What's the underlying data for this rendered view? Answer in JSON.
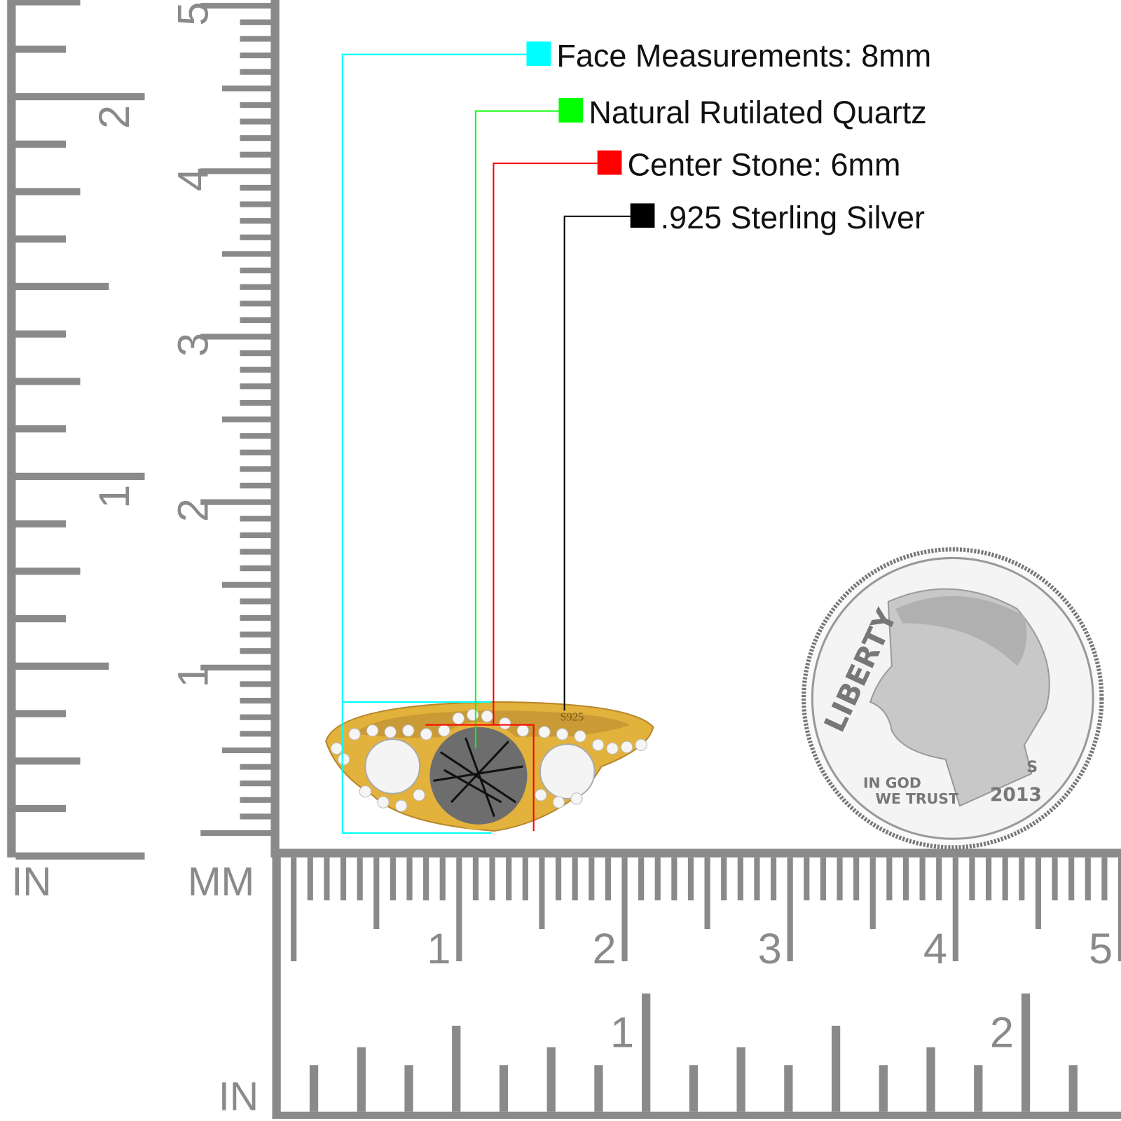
{
  "legend": [
    {
      "label": "Face Measurements: 8mm",
      "color": "#00ffff"
    },
    {
      "label": "Natural Rutilated Quartz",
      "color": "#00ff00"
    },
    {
      "label": "Center Stone: 6mm",
      "color": "#ff0000"
    },
    {
      "label": ".925 Sterling Silver",
      "color": "#000000"
    }
  ],
  "rulers": {
    "vertical": {
      "in_caption": "IN",
      "mm_caption": "MM",
      "mm_numbers": [
        "1",
        "2",
        "3",
        "4",
        "5"
      ],
      "in_numbers": [
        "1",
        "2"
      ]
    },
    "horizontal": {
      "in_caption": "IN",
      "mm_numbers": [
        "1",
        "2",
        "3",
        "4",
        "5"
      ],
      "in_numbers": [
        "1",
        "2"
      ]
    },
    "tick_color": "#8a8a8a"
  },
  "ring": {
    "stamp": "S925",
    "metal_color": "#e3b23c"
  },
  "coin": {
    "legend": "LIBERTY",
    "motto_line1": "IN GOD",
    "motto_line2": "WE TRUST",
    "year": "2013",
    "mint_mark": "S"
  }
}
